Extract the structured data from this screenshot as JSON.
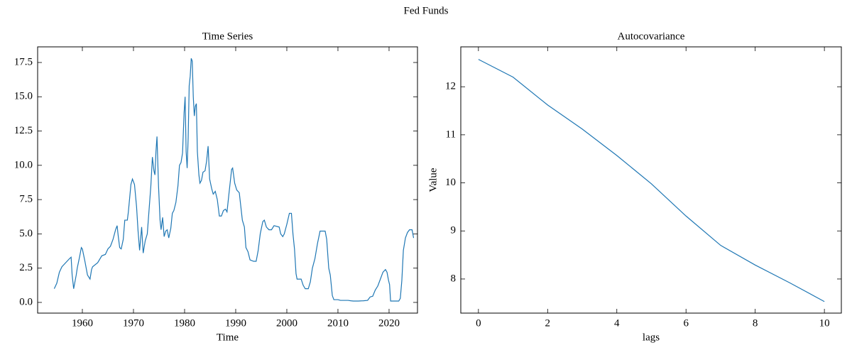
{
  "suptitle": "Fed Funds",
  "chart_data": [
    {
      "type": "line",
      "title": "Time Series",
      "xlabel": "Time",
      "x": [
        1954.5,
        1955,
        1955.5,
        1956,
        1956.5,
        1957,
        1957.5,
        1957.8,
        1958,
        1958.3,
        1958.8,
        1959,
        1959.5,
        1959.8,
        1960,
        1960.5,
        1961,
        1961.5,
        1961.8,
        1962,
        1963,
        1963.8,
        1964.5,
        1965,
        1965.5,
        1966,
        1966.5,
        1966.8,
        1967,
        1967.3,
        1967.6,
        1968,
        1968.3,
        1968.8,
        1969,
        1969.5,
        1969.8,
        1970.2,
        1970.6,
        1970.9,
        1971.2,
        1971.6,
        1971.9,
        1972.3,
        1972.7,
        1973,
        1973.4,
        1973.7,
        1974,
        1974.2,
        1974.4,
        1974.6,
        1974.9,
        1975.2,
        1975.4,
        1975.7,
        1976,
        1976.3,
        1976.6,
        1976.9,
        1977.3,
        1977.6,
        1977.9,
        1978.3,
        1978.7,
        1979,
        1979.3,
        1979.6,
        1979.9,
        1980.1,
        1980.3,
        1980.5,
        1980.7,
        1980.9,
        1981.1,
        1981.3,
        1981.5,
        1981.7,
        1981.9,
        1982.1,
        1982.3,
        1982.5,
        1982.8,
        1983,
        1983.3,
        1983.6,
        1984,
        1984.3,
        1984.6,
        1984.9,
        1985.3,
        1985.6,
        1986,
        1986.4,
        1986.8,
        1987.2,
        1987.6,
        1988,
        1988.3,
        1988.7,
        1989.2,
        1989.4,
        1989.8,
        1990.2,
        1990.7,
        1991,
        1991.3,
        1991.7,
        1992,
        1992.4,
        1992.8,
        1993.5,
        1994,
        1994.4,
        1994.8,
        1995.3,
        1995.6,
        1996,
        1996.5,
        1997,
        1997.5,
        1998.5,
        1998.8,
        1999.2,
        1999.5,
        2000,
        2000.5,
        2000.9,
        2001.2,
        2001.5,
        2001.8,
        2002,
        2002.8,
        2003.2,
        2003.6,
        2004.2,
        2004.6,
        2005,
        2005.5,
        2006,
        2006.5,
        2007.5,
        2007.8,
        2008.2,
        2008.5,
        2008.9,
        2009.2,
        2010,
        2010.5,
        2011,
        2012,
        2012.5,
        2013,
        2014,
        2015,
        2015.8,
        2016.3,
        2016.8,
        2017.3,
        2017.8,
        2018.3,
        2018.8,
        2019.3,
        2019.6,
        2019.9,
        2020.1,
        2020.3,
        2021,
        2021.9,
        2022.2,
        2022.5,
        2022.8,
        2023.2,
        2023.6,
        2024,
        2024.5,
        2024.8
      ],
      "series": [
        {
          "name": "Fed Funds",
          "color": "#1f77b4",
          "values": [
            1.0,
            1.4,
            2.2,
            2.6,
            2.8,
            3.0,
            3.2,
            3.3,
            2.0,
            1.0,
            2.0,
            2.5,
            3.4,
            4.0,
            3.9,
            3.0,
            2.0,
            1.7,
            2.4,
            2.6,
            2.9,
            3.4,
            3.5,
            3.9,
            4.1,
            4.6,
            5.3,
            5.6,
            4.9,
            4.0,
            3.9,
            4.6,
            6.0,
            6.0,
            6.6,
            8.6,
            9.0,
            8.6,
            7.0,
            5.2,
            3.8,
            5.5,
            3.6,
            4.5,
            5.0,
            6.5,
            8.5,
            10.6,
            9.6,
            9.3,
            11.0,
            12.1,
            8.5,
            6.0,
            5.3,
            6.2,
            4.8,
            5.2,
            5.3,
            4.7,
            5.4,
            6.5,
            6.7,
            7.3,
            8.5,
            10.0,
            10.2,
            10.9,
            13.8,
            15.0,
            11.0,
            9.8,
            12.0,
            15.8,
            16.5,
            17.8,
            17.6,
            15.0,
            13.6,
            14.3,
            14.5,
            11.0,
            9.3,
            8.7,
            8.9,
            9.5,
            9.6,
            10.3,
            11.4,
            9.0,
            8.3,
            7.9,
            8.1,
            7.5,
            6.3,
            6.3,
            6.7,
            6.8,
            6.6,
            8.0,
            9.7,
            9.8,
            8.7,
            8.2,
            8.0,
            7.0,
            6.0,
            5.5,
            4.0,
            3.7,
            3.1,
            3.0,
            3.0,
            3.8,
            5.0,
            5.9,
            6.0,
            5.5,
            5.3,
            5.3,
            5.6,
            5.5,
            5.0,
            4.8,
            5.0,
            5.7,
            6.5,
            6.5,
            5.0,
            3.9,
            2.1,
            1.7,
            1.7,
            1.25,
            1.0,
            1.0,
            1.5,
            2.5,
            3.2,
            4.3,
            5.2,
            5.2,
            4.6,
            2.5,
            2.0,
            0.5,
            0.2,
            0.2,
            0.15,
            0.15,
            0.15,
            0.12,
            0.1,
            0.1,
            0.12,
            0.15,
            0.4,
            0.45,
            0.9,
            1.2,
            1.7,
            2.2,
            2.4,
            2.2,
            1.6,
            1.3,
            0.1,
            0.1,
            0.1,
            0.3,
            1.6,
            3.8,
            4.7,
            5.1,
            5.3,
            5.3,
            4.7
          ]
        }
      ],
      "xlim": [
        1951.25,
        2025.56
      ],
      "xticks": [
        1960,
        1970,
        1980,
        1990,
        2000,
        2010,
        2020
      ],
      "ylim": [
        -0.78,
        18.64
      ],
      "yticks": [
        {
          "value": 0,
          "label": "0.0"
        },
        2.5,
        {
          "value": 5,
          "label": "5.0"
        },
        7.5,
        {
          "value": 10,
          "label": "10.0"
        },
        12.5,
        {
          "value": 15,
          "label": "15.0"
        },
        17.5
      ]
    },
    {
      "type": "line",
      "title": "Autocovariance",
      "xlabel": "lags",
      "ylabel": "Value",
      "x": [
        0,
        1,
        2,
        3,
        4,
        5,
        6,
        7,
        8,
        9,
        10
      ],
      "series": [
        {
          "name": "Autocovariance",
          "color": "#1f77b4",
          "values": [
            12.57,
            12.2,
            11.62,
            11.12,
            10.57,
            9.98,
            9.31,
            8.7,
            8.29,
            7.92,
            7.53
          ]
        }
      ],
      "xlim": [
        -0.51,
        10.49
      ],
      "xticks": [
        0,
        2,
        4,
        6,
        8,
        10
      ],
      "ylim": [
        7.29,
        12.83
      ],
      "yticks": [
        8,
        9,
        10,
        11,
        12
      ]
    }
  ]
}
